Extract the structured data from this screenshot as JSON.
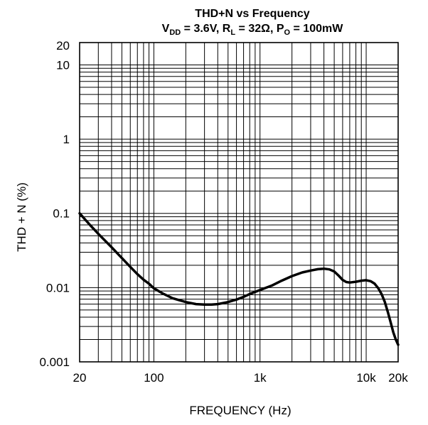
{
  "chart_data": {
    "type": "line",
    "title": "THD+N vs Frequency",
    "subtitle": {
      "vdd_label": "V",
      "vdd_sub": "DD",
      "vdd_value": " = 3.6V, R",
      "rl_sub": "L",
      "rl_value": " = 32Ω, P",
      "po_sub": "O",
      "po_value": " = 100mW"
    },
    "xlabel": "FREQUENCY (Hz)",
    "ylabel": "THD + N (%)",
    "x_scale": "log",
    "y_scale": "log",
    "xlim": [
      20,
      20000
    ],
    "ylim": [
      0.001,
      20
    ],
    "grid": true,
    "x_ticks": [
      {
        "value": 20,
        "label": "20"
      },
      {
        "value": 100,
        "label": "100"
      },
      {
        "value": 1000,
        "label": "1k"
      },
      {
        "value": 10000,
        "label": "10k"
      },
      {
        "value": 20000,
        "label": "20k"
      }
    ],
    "y_ticks": [
      {
        "value": 0.001,
        "label": "0.001"
      },
      {
        "value": 0.01,
        "label": "0.01"
      },
      {
        "value": 0.1,
        "label": "0.1"
      },
      {
        "value": 1,
        "label": "1"
      },
      {
        "value": 10,
        "label": "10"
      },
      {
        "value": 20,
        "label": "20"
      }
    ],
    "series": [
      {
        "color": "#000000",
        "x": [
          20,
          25,
          30,
          40,
          50,
          60,
          70,
          80,
          90,
          100,
          120,
          150,
          200,
          250,
          300,
          350,
          400,
          500,
          600,
          700,
          800,
          1000,
          1300,
          1600,
          2000,
          2500,
          3000,
          3500,
          4000,
          4500,
          5000,
          5500,
          6000,
          6500,
          7000,
          8000,
          9000,
          10000,
          11000,
          12000,
          13000,
          14000,
          15000,
          16000,
          17000,
          18000,
          19000,
          20000
        ],
        "y": [
          0.1,
          0.07,
          0.053,
          0.035,
          0.025,
          0.019,
          0.0152,
          0.0128,
          0.0113,
          0.0098,
          0.0084,
          0.0072,
          0.0064,
          0.006,
          0.0059,
          0.0059,
          0.006,
          0.0064,
          0.0069,
          0.0075,
          0.0082,
          0.0093,
          0.0107,
          0.0124,
          0.0143,
          0.016,
          0.017,
          0.0177,
          0.018,
          0.0176,
          0.0165,
          0.0145,
          0.0127,
          0.0119,
          0.0117,
          0.012,
          0.0124,
          0.0126,
          0.0122,
          0.0113,
          0.0098,
          0.0081,
          0.0064,
          0.0047,
          0.0034,
          0.0025,
          0.002,
          0.0017
        ]
      }
    ]
  }
}
